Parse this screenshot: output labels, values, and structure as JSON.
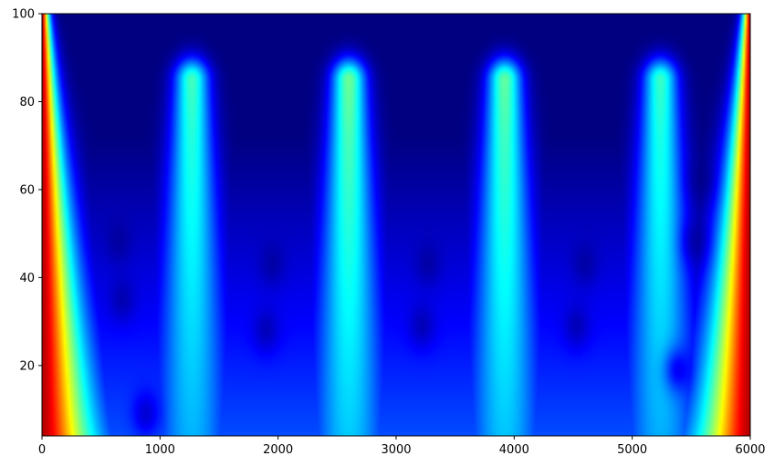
{
  "chart_data": {
    "type": "heatmap",
    "title": "",
    "xlabel": "",
    "ylabel": "",
    "xlim": [
      0,
      6000
    ],
    "ylim": [
      4,
      100
    ],
    "xticks": [
      0,
      1000,
      2000,
      3000,
      4000,
      5000,
      6000
    ],
    "xtick_labels": [
      "0",
      "1000",
      "2000",
      "3000",
      "4000",
      "5000",
      "6000"
    ],
    "yticks": [
      20,
      40,
      60,
      80,
      100
    ],
    "ytick_labels": [
      "20",
      "40",
      "60",
      "80",
      "100"
    ],
    "colormap": "jet",
    "colormap_stops": [
      "#00007f",
      "#0000ff",
      "#007fff",
      "#00ffff",
      "#7fff7f",
      "#ffff00",
      "#ff7f00",
      "#ff0000",
      "#7f0000"
    ],
    "grid": false,
    "legend": "none",
    "colorbar": false,
    "description_of_field": {
      "edge_strength": [
        {
          "edge": "left",
          "peak_value": 0.95,
          "decay_width_at_y4": 450,
          "decay_width_at_y100": 60
        },
        {
          "edge": "right",
          "peak_value": 0.95,
          "decay_width_at_y4": 450,
          "decay_width_at_y100": 60
        }
      ],
      "lobes": [
        {
          "x_center": 1270,
          "y_peak": 85,
          "peak_value": 0.44
        },
        {
          "x_center": 2600,
          "y_peak": 85,
          "peak_value": 0.48
        },
        {
          "x_center": 3920,
          "y_peak": 85,
          "peak_value": 0.47
        },
        {
          "x_center": 5240,
          "y_peak": 85,
          "peak_value": 0.43
        }
      ],
      "base_level_low_y": 0.2,
      "dark_spots": [
        {
          "x": 880,
          "y": 9
        },
        {
          "x": 680,
          "y": 35
        },
        {
          "x": 650,
          "y": 48
        },
        {
          "x": 1900,
          "y": 28
        },
        {
          "x": 1950,
          "y": 43
        },
        {
          "x": 3220,
          "y": 29
        },
        {
          "x": 3270,
          "y": 43
        },
        {
          "x": 4530,
          "y": 29
        },
        {
          "x": 4600,
          "y": 43
        },
        {
          "x": 5380,
          "y": 19
        },
        {
          "x": 5530,
          "y": 48
        },
        {
          "x": 5580,
          "y": 62
        }
      ]
    }
  }
}
